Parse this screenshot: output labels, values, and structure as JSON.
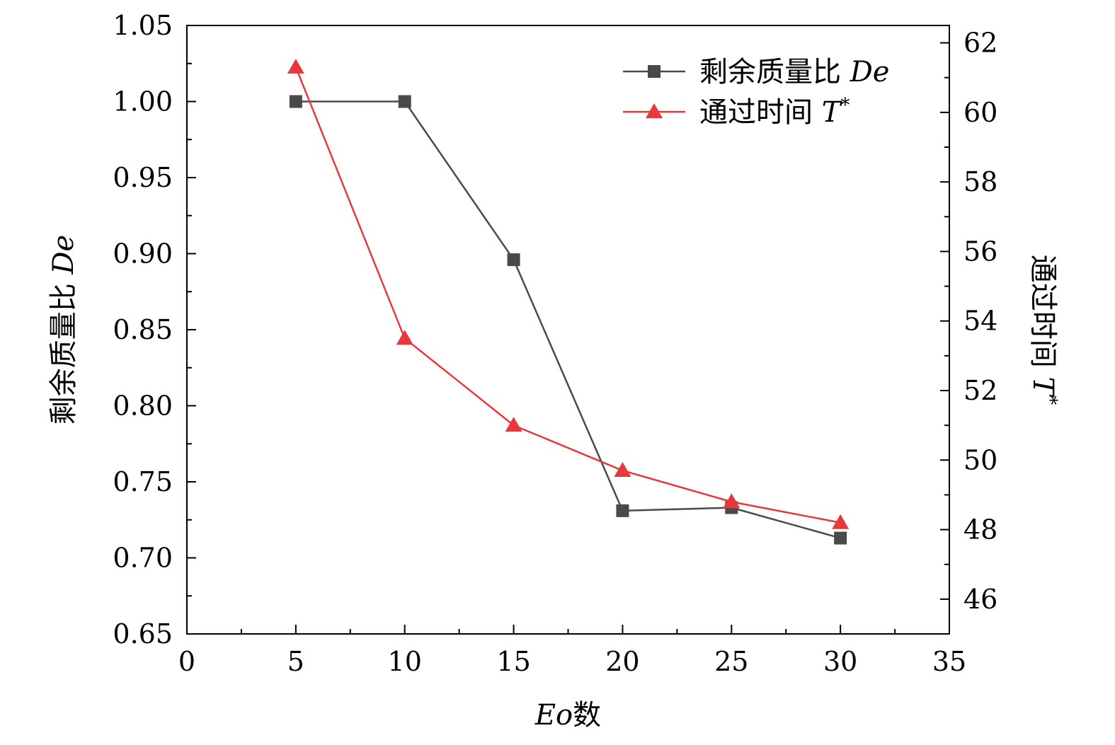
{
  "chart_data": {
    "type": "line",
    "x": [
      5,
      10,
      15,
      20,
      25,
      30
    ],
    "xlabel": {
      "var": "Eo",
      "suffix": "数"
    },
    "ylabel_left": {
      "text": "剩余质量比 ",
      "var": "De"
    },
    "ylabel_right": {
      "text": "通过时间 ",
      "var": "T",
      "sup": "*"
    },
    "xlim": [
      0,
      35
    ],
    "ylim_left": [
      0.65,
      1.05
    ],
    "ylim_right": [
      45,
      62.5
    ],
    "xticks": [
      0,
      5,
      10,
      15,
      20,
      25,
      30,
      35
    ],
    "xtick_labels": [
      "0",
      "5",
      "10",
      "15",
      "20",
      "25",
      "30",
      "35"
    ],
    "yticks_left": [
      0.65,
      0.7,
      0.75,
      0.8,
      0.85,
      0.9,
      0.95,
      1.0,
      1.05
    ],
    "ytick_labels_left": [
      "0.65",
      "0.70",
      "0.75",
      "0.80",
      "0.85",
      "0.90",
      "0.95",
      "1.00",
      "1.05"
    ],
    "yticks_right": [
      46,
      48,
      50,
      52,
      54,
      56,
      58,
      60,
      62
    ],
    "ytick_labels_right": [
      "46",
      "48",
      "50",
      "52",
      "54",
      "56",
      "58",
      "60",
      "62"
    ],
    "grid": false,
    "legend_position": "top-right",
    "series": [
      {
        "name": "剩余质量比 ",
        "name_var": "De",
        "axis": "left",
        "marker": "square",
        "color": "#4a4a4a",
        "values": [
          1.0,
          1.0,
          0.896,
          0.731,
          0.733,
          0.713
        ]
      },
      {
        "name": "通过时间 ",
        "name_var": "T",
        "name_sup": "*",
        "axis": "right",
        "marker": "triangle",
        "color": "#e8383d",
        "values": [
          61.3,
          53.5,
          51.0,
          49.7,
          48.8,
          48.2
        ]
      }
    ]
  }
}
